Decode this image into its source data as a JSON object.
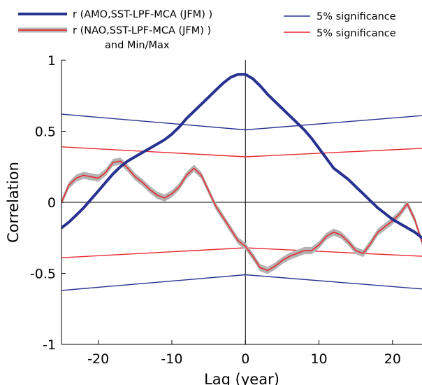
{
  "chart_data": {
    "type": "line",
    "xlabel": "Lag (year)",
    "ylabel": "Correlation",
    "xlim": [
      -25,
      24
    ],
    "ylim": [
      -1,
      1
    ],
    "xticks": [
      -20,
      -10,
      0,
      10,
      20
    ],
    "xtick_labels": [
      "-20",
      "-10",
      "0",
      "10",
      "20"
    ],
    "yticks": [
      -1,
      -0.5,
      0,
      0.5,
      1
    ],
    "ytick_labels": [
      "-1",
      "-0.5",
      "0",
      "0.5",
      "1"
    ],
    "grid": false,
    "zero_lines": true,
    "legend_left": {
      "entry1": "r (AMO,SST-LPF-MCA (JFM) )",
      "entry2": "r (NAO,SST-LPF-MCA (JFM) )",
      "entry2_sub": "and Min/Max"
    },
    "legend_right": {
      "entry1": "5% significance",
      "entry2": "5% significance"
    },
    "colors": {
      "amo": "#27318f",
      "nao": "#e8282e",
      "minmax": "#b3b3b3",
      "sig_blue": "#27318f",
      "sig_red": "#e8282e"
    },
    "series": [
      {
        "name": "r (AMO,SST-LPF-MCA (JFM) )",
        "x": [
          -25,
          -24,
          -23,
          -22,
          -21,
          -20,
          -19,
          -18,
          -17,
          -16,
          -15,
          -14,
          -13,
          -12,
          -11,
          -10,
          -9,
          -8,
          -7,
          -6,
          -5,
          -4,
          -3,
          -2,
          -1,
          0,
          1,
          2,
          3,
          4,
          5,
          6,
          7,
          8,
          9,
          10,
          11,
          12,
          13,
          14,
          15,
          16,
          17,
          18,
          19,
          20,
          21,
          22,
          23,
          24
        ],
        "y": [
          -0.18,
          -0.14,
          -0.09,
          -0.04,
          0.02,
          0.08,
          0.14,
          0.2,
          0.25,
          0.29,
          0.32,
          0.35,
          0.38,
          0.41,
          0.44,
          0.48,
          0.53,
          0.59,
          0.64,
          0.69,
          0.74,
          0.79,
          0.84,
          0.88,
          0.9,
          0.9,
          0.87,
          0.82,
          0.76,
          0.71,
          0.66,
          0.61,
          0.56,
          0.51,
          0.45,
          0.38,
          0.31,
          0.24,
          0.2,
          0.16,
          0.11,
          0.06,
          0.01,
          -0.04,
          -0.08,
          -0.12,
          -0.15,
          -0.18,
          -0.21,
          -0.25
        ]
      },
      {
        "name": "r (NAO,SST-LPF-MCA (JFM) )",
        "x": [
          -25,
          -24,
          -23,
          -22,
          -21,
          -20,
          -19,
          -18,
          -17,
          -16,
          -15,
          -14,
          -13,
          -12,
          -11,
          -10,
          -9,
          -8,
          -7,
          -6,
          -5,
          -4,
          -3,
          -2,
          -1,
          0,
          1,
          2,
          3,
          4,
          5,
          6,
          7,
          8,
          9,
          10,
          11,
          12,
          13,
          14,
          15,
          16,
          17,
          18,
          19,
          20,
          21,
          22,
          23,
          24
        ],
        "y": [
          0.0,
          0.12,
          0.17,
          0.19,
          0.18,
          0.17,
          0.21,
          0.28,
          0.29,
          0.24,
          0.18,
          0.14,
          0.09,
          0.05,
          0.03,
          0.06,
          0.11,
          0.19,
          0.24,
          0.19,
          0.08,
          -0.03,
          -0.11,
          -0.19,
          -0.27,
          -0.31,
          -0.38,
          -0.46,
          -0.48,
          -0.45,
          -0.41,
          -0.38,
          -0.36,
          -0.34,
          -0.34,
          -0.3,
          -0.24,
          -0.21,
          -0.23,
          -0.28,
          -0.34,
          -0.36,
          -0.29,
          -0.21,
          -0.17,
          -0.13,
          -0.08,
          -0.01,
          -0.12,
          -0.28
        ]
      },
      {
        "name": "",
        "role": "5% significance (AMO) upper",
        "x": [
          -25,
          0,
          24
        ],
        "y": [
          0.62,
          0.51,
          0.61
        ]
      },
      {
        "name": "",
        "role": "5% significance (AMO) lower",
        "x": [
          -25,
          0,
          24
        ],
        "y": [
          -0.62,
          -0.51,
          -0.61
        ]
      },
      {
        "name": "",
        "role": "5% significance (NAO) upper",
        "x": [
          -25,
          0,
          24
        ],
        "y": [
          0.39,
          0.32,
          0.38
        ]
      },
      {
        "name": "",
        "role": "5% significance (NAO) lower",
        "x": [
          -25,
          0,
          24
        ],
        "y": [
          -0.39,
          -0.32,
          -0.38
        ]
      }
    ],
    "minmax_band_halfwidth": 0.025
  }
}
